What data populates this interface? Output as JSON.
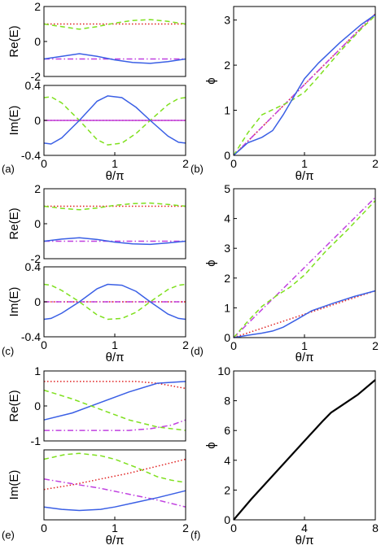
{
  "colors": {
    "blue": "#3a5fe5",
    "green": "#7fe01e",
    "red": "#e02020",
    "magenta": "#c040e0",
    "black": "#000000"
  },
  "chart_data": [
    {
      "id": "a-re",
      "type": "line",
      "panel_label": "(a)",
      "xlabel": "",
      "ylabel": "Re(E)",
      "xlim": [
        0,
        2
      ],
      "ylim": [
        -2,
        2
      ],
      "xticks": [],
      "yticks": [
        -2,
        0,
        2
      ],
      "series": [
        {
          "color": "red",
          "dash": "dot",
          "x": [
            0,
            2
          ],
          "y": [
            1,
            1
          ]
        },
        {
          "color": "green",
          "dash": "dash",
          "x": [
            0,
            0.25,
            0.5,
            0.75,
            1.0,
            1.25,
            1.5,
            1.75,
            2.0
          ],
          "y": [
            1.0,
            0.85,
            0.7,
            0.85,
            1.05,
            1.2,
            1.25,
            1.15,
            1.0
          ]
        },
        {
          "color": "magenta",
          "dash": "dashdot",
          "x": [
            0,
            2
          ],
          "y": [
            -1,
            -1
          ]
        },
        {
          "color": "blue",
          "dash": "solid",
          "x": [
            0,
            0.25,
            0.5,
            0.75,
            1.0,
            1.25,
            1.5,
            1.75,
            2.0
          ],
          "y": [
            -1.0,
            -0.85,
            -0.7,
            -0.85,
            -1.05,
            -1.2,
            -1.25,
            -1.15,
            -1.0
          ]
        }
      ]
    },
    {
      "id": "a-im",
      "type": "line",
      "panel_label": "",
      "xlabel": "θ/π",
      "ylabel": "Im(E)",
      "xlim": [
        0,
        2
      ],
      "ylim": [
        -0.4,
        0.4
      ],
      "xticks": [
        0,
        1,
        2
      ],
      "yticks": [
        -0.4,
        0,
        0.4
      ],
      "series": [
        {
          "color": "red",
          "dash": "dot",
          "x": [
            0,
            2
          ],
          "y": [
            0,
            0
          ]
        },
        {
          "color": "magenta",
          "dash": "solid",
          "x": [
            0,
            2
          ],
          "y": [
            0,
            0
          ]
        },
        {
          "color": "green",
          "dash": "dash",
          "x": [
            0,
            0.1,
            0.25,
            0.5,
            0.75,
            0.9,
            1.1,
            1.3,
            1.5,
            1.75,
            1.9,
            2.0
          ],
          "y": [
            0.26,
            0.27,
            0.2,
            0.0,
            -0.22,
            -0.28,
            -0.26,
            -0.15,
            0.0,
            0.18,
            0.25,
            0.26
          ]
        },
        {
          "color": "blue",
          "dash": "solid",
          "x": [
            0,
            0.1,
            0.25,
            0.5,
            0.75,
            0.9,
            1.1,
            1.3,
            1.5,
            1.75,
            1.9,
            2.0
          ],
          "y": [
            -0.26,
            -0.27,
            -0.2,
            0.0,
            0.22,
            0.28,
            0.26,
            0.15,
            0.0,
            -0.18,
            -0.25,
            -0.26
          ]
        }
      ]
    },
    {
      "id": "b",
      "type": "line",
      "panel_label": "(b)",
      "xlabel": "θ/π",
      "ylabel": "ϕ",
      "xlim": [
        0,
        2
      ],
      "ylim": [
        0,
        3.3
      ],
      "xticks": [
        0,
        1,
        2
      ],
      "yticks": [
        0,
        1,
        2,
        3
      ],
      "series": [
        {
          "color": "red",
          "dash": "dot",
          "x": [
            0,
            2
          ],
          "y": [
            0,
            3.14
          ]
        },
        {
          "color": "magenta",
          "dash": "dashdot",
          "x": [
            0,
            2
          ],
          "y": [
            0,
            3.14
          ]
        },
        {
          "color": "green",
          "dash": "dash",
          "x": [
            0,
            0.2,
            0.4,
            0.6,
            0.8,
            1.0,
            1.2,
            1.5,
            1.8,
            2.0
          ],
          "y": [
            0,
            0.5,
            0.9,
            1.05,
            1.2,
            1.4,
            1.75,
            2.3,
            2.8,
            3.1
          ]
        },
        {
          "color": "blue",
          "dash": "solid",
          "x": [
            0,
            0.2,
            0.4,
            0.55,
            0.7,
            0.85,
            1.0,
            1.2,
            1.5,
            1.8,
            2.0
          ],
          "y": [
            0,
            0.28,
            0.4,
            0.55,
            0.9,
            1.3,
            1.7,
            2.05,
            2.5,
            2.9,
            3.12
          ]
        }
      ]
    },
    {
      "id": "c-re",
      "type": "line",
      "panel_label": "(c)",
      "xlabel": "",
      "ylabel": "Re(E)",
      "xlim": [
        0,
        2
      ],
      "ylim": [
        -2,
        2
      ],
      "xticks": [],
      "yticks": [
        -2,
        0,
        2
      ],
      "series": [
        {
          "color": "red",
          "dash": "dot",
          "x": [
            0,
            2
          ],
          "y": [
            1,
            1
          ]
        },
        {
          "color": "green",
          "dash": "dash",
          "x": [
            0,
            0.25,
            0.5,
            0.75,
            1.0,
            1.25,
            1.5,
            1.75,
            2.0
          ],
          "y": [
            1.0,
            0.88,
            0.8,
            0.9,
            1.05,
            1.15,
            1.18,
            1.1,
            1.0
          ]
        },
        {
          "color": "magenta",
          "dash": "dashdot",
          "x": [
            0,
            2
          ],
          "y": [
            -1,
            -1
          ]
        },
        {
          "color": "blue",
          "dash": "solid",
          "x": [
            0,
            0.25,
            0.5,
            0.75,
            1.0,
            1.25,
            1.5,
            1.75,
            2.0
          ],
          "y": [
            -1.0,
            -0.88,
            -0.8,
            -0.9,
            -1.05,
            -1.15,
            -1.18,
            -1.1,
            -1.0
          ]
        }
      ]
    },
    {
      "id": "c-im",
      "type": "line",
      "panel_label": "",
      "xlabel": "θ/π",
      "ylabel": "Im(E)",
      "xlim": [
        0,
        2
      ],
      "ylim": [
        -0.4,
        0.4
      ],
      "xticks": [
        0,
        1,
        2
      ],
      "yticks": [
        -0.4,
        0,
        0.4
      ],
      "series": [
        {
          "color": "red",
          "dash": "dot",
          "x": [
            0,
            2
          ],
          "y": [
            0,
            0
          ]
        },
        {
          "color": "magenta",
          "dash": "dashdot",
          "x": [
            0,
            2
          ],
          "y": [
            0,
            0
          ]
        },
        {
          "color": "green",
          "dash": "dash",
          "x": [
            0,
            0.1,
            0.25,
            0.5,
            0.75,
            0.9,
            1.1,
            1.3,
            1.5,
            1.75,
            1.9,
            2.0
          ],
          "y": [
            0.2,
            0.19,
            0.13,
            0.0,
            -0.15,
            -0.2,
            -0.19,
            -0.12,
            0.0,
            0.14,
            0.19,
            0.2
          ]
        },
        {
          "color": "blue",
          "dash": "solid",
          "x": [
            0,
            0.1,
            0.25,
            0.5,
            0.75,
            0.9,
            1.1,
            1.3,
            1.5,
            1.75,
            1.9,
            2.0
          ],
          "y": [
            -0.2,
            -0.19,
            -0.13,
            0.0,
            0.15,
            0.2,
            0.19,
            0.12,
            0.0,
            -0.14,
            -0.19,
            -0.2
          ]
        }
      ]
    },
    {
      "id": "d",
      "type": "line",
      "panel_label": "(d)",
      "xlabel": "θ/π",
      "ylabel": "ϕ",
      "xlim": [
        0,
        2
      ],
      "ylim": [
        0,
        5
      ],
      "xticks": [
        0,
        1,
        2
      ],
      "yticks": [
        0,
        1,
        2,
        3,
        4,
        5
      ],
      "series": [
        {
          "color": "magenta",
          "dash": "dashdot",
          "x": [
            0,
            2
          ],
          "y": [
            0,
            4.71
          ]
        },
        {
          "color": "green",
          "dash": "dash",
          "x": [
            0,
            0.2,
            0.4,
            0.6,
            0.8,
            1.0,
            1.3,
            1.6,
            2.0
          ],
          "y": [
            0,
            0.55,
            1.05,
            1.4,
            1.7,
            2.1,
            2.9,
            3.6,
            4.6
          ]
        },
        {
          "color": "red",
          "dash": "dot",
          "x": [
            0,
            2
          ],
          "y": [
            0,
            1.57
          ]
        },
        {
          "color": "blue",
          "dash": "solid",
          "x": [
            0,
            0.2,
            0.4,
            0.55,
            0.7,
            0.9,
            1.1,
            1.4,
            1.7,
            2.0
          ],
          "y": [
            0,
            0.08,
            0.15,
            0.22,
            0.35,
            0.62,
            0.9,
            1.15,
            1.38,
            1.57
          ]
        }
      ]
    },
    {
      "id": "e-re",
      "type": "line",
      "panel_label": "(e)",
      "xlabel": "",
      "ylabel": "Re(E)",
      "xlim": [
        0,
        2
      ],
      "ylim": [
        -1,
        1
      ],
      "xticks": [],
      "yticks": [
        -1,
        0,
        1
      ],
      "series": [
        {
          "color": "red",
          "dash": "dot",
          "x": [
            0,
            1.3,
            1.6,
            2.0
          ],
          "y": [
            0.7,
            0.7,
            0.65,
            0.5
          ]
        },
        {
          "color": "blue",
          "dash": "solid",
          "x": [
            0,
            0.4,
            0.8,
            1.2,
            1.6,
            2.0
          ],
          "y": [
            -0.4,
            -0.2,
            0.1,
            0.4,
            0.65,
            0.7
          ]
        },
        {
          "color": "green",
          "dash": "dash",
          "x": [
            0,
            0.4,
            0.8,
            1.2,
            1.6,
            2.0
          ],
          "y": [
            0.45,
            0.2,
            -0.1,
            -0.4,
            -0.6,
            -0.7
          ]
        },
        {
          "color": "magenta",
          "dash": "dashdot",
          "x": [
            0,
            1.2,
            1.5,
            1.8,
            2.0
          ],
          "y": [
            -0.7,
            -0.7,
            -0.65,
            -0.55,
            -0.4
          ]
        }
      ]
    },
    {
      "id": "e-im",
      "type": "line",
      "panel_label": "",
      "xlabel": "θ/π",
      "ylabel": "Im(E)",
      "xlim": [
        0,
        2
      ],
      "ylim": [
        -0.3,
        0.3
      ],
      "xticks": [
        0,
        1,
        2
      ],
      "yticks": [],
      "series": [
        {
          "color": "green",
          "dash": "dash",
          "x": [
            0,
            0.3,
            0.5,
            0.8,
            1.0,
            1.3,
            1.6,
            1.8,
            2.0
          ],
          "y": [
            0.22,
            0.26,
            0.27,
            0.25,
            0.22,
            0.15,
            0.07,
            0.04,
            0.02
          ]
        },
        {
          "color": "red",
          "dash": "dot",
          "x": [
            0,
            0.4,
            0.8,
            1.2,
            1.6,
            2.0
          ],
          "y": [
            -0.04,
            0.0,
            0.05,
            0.1,
            0.16,
            0.22
          ]
        },
        {
          "color": "magenta",
          "dash": "dashdot",
          "x": [
            0,
            0.4,
            0.8,
            1.2,
            1.6,
            2.0
          ],
          "y": [
            0.05,
            0.01,
            -0.03,
            -0.08,
            -0.13,
            -0.19
          ]
        },
        {
          "color": "blue",
          "dash": "solid",
          "x": [
            0,
            0.25,
            0.5,
            0.8,
            1.0,
            1.3,
            1.6,
            2.0
          ],
          "y": [
            -0.19,
            -0.21,
            -0.22,
            -0.21,
            -0.19,
            -0.15,
            -0.11,
            -0.05
          ]
        }
      ]
    },
    {
      "id": "f",
      "type": "line",
      "panel_label": "(f)",
      "xlabel": "θ/π",
      "ylabel": "ϕ",
      "xlim": [
        0,
        8
      ],
      "ylim": [
        0,
        10
      ],
      "xticks": [
        0,
        4,
        8
      ],
      "yticks": [
        0,
        2,
        4,
        6,
        8,
        10
      ],
      "series": [
        {
          "color": "black",
          "dash": "solid",
          "x": [
            0,
            1,
            2,
            3,
            4,
            5,
            5.5,
            6,
            7,
            8
          ],
          "y": [
            0,
            1.4,
            2.7,
            4.0,
            5.3,
            6.6,
            7.2,
            7.6,
            8.4,
            9.4
          ]
        }
      ]
    }
  ]
}
